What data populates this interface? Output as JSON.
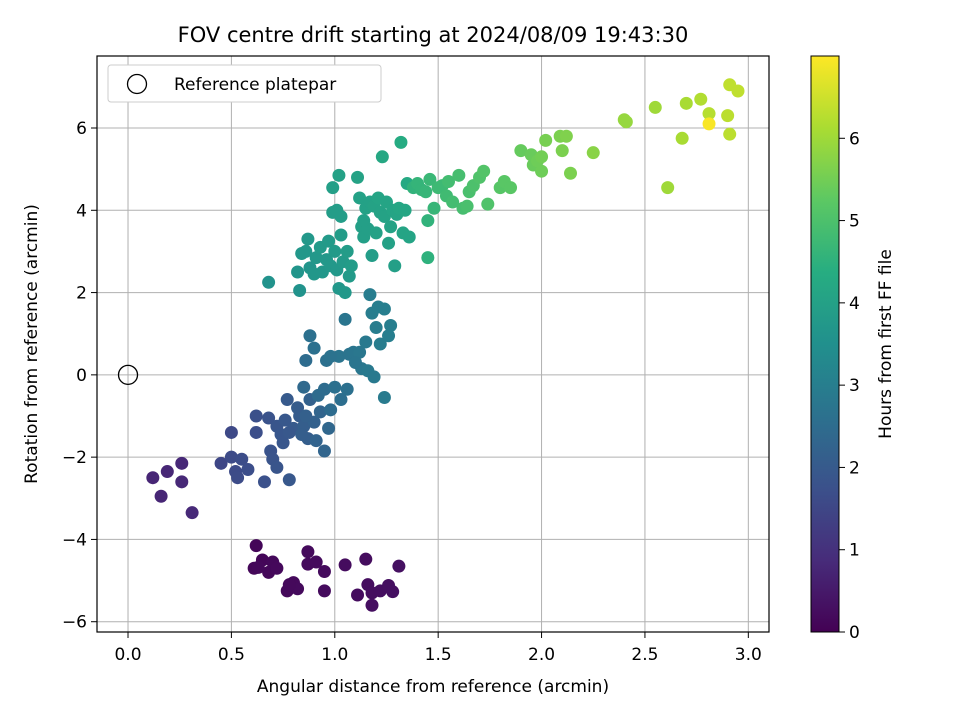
{
  "chart_data": {
    "type": "scatter",
    "title": "FOV centre drift starting at 2024/08/09 19:43:30",
    "xlabel": "Angular distance from reference (arcmin)",
    "ylabel": "Rotation from reference (arcmin)",
    "xlim": [
      -0.15,
      3.1
    ],
    "ylim": [
      -6.25,
      7.75
    ],
    "xticks": [
      0.0,
      0.5,
      1.0,
      1.5,
      2.0,
      2.5,
      3.0
    ],
    "xtick_labels": [
      "0.0",
      "0.5",
      "1.0",
      "1.5",
      "2.0",
      "2.5",
      "3.0"
    ],
    "yticks": [
      -6,
      -4,
      -2,
      0,
      2,
      4,
      6
    ],
    "ytick_labels": [
      "−6",
      "−4",
      "−2",
      "0",
      "2",
      "4",
      "6"
    ],
    "grid": true,
    "colormap": "viridis",
    "colorbar": {
      "label": "Hours from first FF file",
      "range": [
        0,
        7.0
      ],
      "ticks": [
        0,
        1,
        2,
        3,
        4,
        5,
        6
      ],
      "tick_labels": [
        "0",
        "1",
        "2",
        "3",
        "4",
        "5",
        "6"
      ]
    },
    "legend": {
      "position": "top-left",
      "entries": [
        {
          "label": "Reference platepar",
          "marker": "open-circle",
          "x": 0.0,
          "y": 0.0
        }
      ]
    },
    "points": [
      {
        "x": 0.62,
        "y": -4.15,
        "h": 0.1
      },
      {
        "x": 0.65,
        "y": -4.5,
        "h": 0.1
      },
      {
        "x": 0.61,
        "y": -4.7,
        "h": 0.12
      },
      {
        "x": 0.68,
        "y": -4.8,
        "h": 0.12
      },
      {
        "x": 0.7,
        "y": -4.55,
        "h": 0.14
      },
      {
        "x": 0.72,
        "y": -4.7,
        "h": 0.15
      },
      {
        "x": 0.77,
        "y": -5.25,
        "h": 0.16
      },
      {
        "x": 0.8,
        "y": -5.05,
        "h": 0.17
      },
      {
        "x": 0.82,
        "y": -5.2,
        "h": 0.18
      },
      {
        "x": 0.87,
        "y": -4.3,
        "h": 0.18
      },
      {
        "x": 0.87,
        "y": -4.6,
        "h": 0.19
      },
      {
        "x": 0.91,
        "y": -4.55,
        "h": 0.2
      },
      {
        "x": 0.95,
        "y": -4.78,
        "h": 0.2
      },
      {
        "x": 0.95,
        "y": -5.25,
        "h": 0.21
      },
      {
        "x": 1.05,
        "y": -4.62,
        "h": 0.22
      },
      {
        "x": 1.11,
        "y": -5.35,
        "h": 0.23
      },
      {
        "x": 1.15,
        "y": -4.48,
        "h": 0.24
      },
      {
        "x": 1.16,
        "y": -5.1,
        "h": 0.25
      },
      {
        "x": 1.18,
        "y": -5.3,
        "h": 0.26
      },
      {
        "x": 1.18,
        "y": -5.6,
        "h": 0.27
      },
      {
        "x": 1.22,
        "y": -5.25,
        "h": 0.27
      },
      {
        "x": 1.26,
        "y": -5.12,
        "h": 0.28
      },
      {
        "x": 1.28,
        "y": -5.27,
        "h": 0.29
      },
      {
        "x": 1.31,
        "y": -4.65,
        "h": 0.3
      },
      {
        "x": 0.63,
        "y": -4.68,
        "h": 0.14
      },
      {
        "x": 0.78,
        "y": -5.1,
        "h": 0.16
      },
      {
        "x": 0.12,
        "y": -2.5,
        "h": 0.75
      },
      {
        "x": 0.16,
        "y": -2.95,
        "h": 0.75
      },
      {
        "x": 0.19,
        "y": -2.35,
        "h": 0.78
      },
      {
        "x": 0.26,
        "y": -2.15,
        "h": 0.8
      },
      {
        "x": 0.26,
        "y": -2.6,
        "h": 0.8
      },
      {
        "x": 0.31,
        "y": -3.35,
        "h": 0.82
      },
      {
        "x": 0.45,
        "y": -2.15,
        "h": 1.5
      },
      {
        "x": 0.5,
        "y": -1.4,
        "h": 1.55
      },
      {
        "x": 0.5,
        "y": -2.0,
        "h": 1.6
      },
      {
        "x": 0.52,
        "y": -2.35,
        "h": 1.6
      },
      {
        "x": 0.53,
        "y": -2.5,
        "h": 1.62
      },
      {
        "x": 0.55,
        "y": -2.05,
        "h": 1.65
      },
      {
        "x": 0.58,
        "y": -2.3,
        "h": 1.68
      },
      {
        "x": 0.62,
        "y": -1.4,
        "h": 1.7
      },
      {
        "x": 0.62,
        "y": -1.0,
        "h": 1.72
      },
      {
        "x": 0.66,
        "y": -2.6,
        "h": 1.75
      },
      {
        "x": 0.68,
        "y": -1.05,
        "h": 1.8
      },
      {
        "x": 0.69,
        "y": -1.85,
        "h": 1.8
      },
      {
        "x": 0.7,
        "y": -2.05,
        "h": 1.82
      },
      {
        "x": 0.72,
        "y": -2.25,
        "h": 1.85
      },
      {
        "x": 0.72,
        "y": -1.25,
        "h": 1.85
      },
      {
        "x": 0.74,
        "y": -1.45,
        "h": 1.9
      },
      {
        "x": 0.75,
        "y": -1.65,
        "h": 1.9
      },
      {
        "x": 0.77,
        "y": -0.6,
        "h": 2.0
      },
      {
        "x": 0.78,
        "y": -2.55,
        "h": 1.95
      },
      {
        "x": 0.8,
        "y": -1.3,
        "h": 2.0
      },
      {
        "x": 0.82,
        "y": -0.8,
        "h": 2.05
      },
      {
        "x": 0.83,
        "y": -1.0,
        "h": 2.05
      },
      {
        "x": 0.85,
        "y": -1.25,
        "h": 2.1
      },
      {
        "x": 0.87,
        "y": -1.55,
        "h": 2.1
      },
      {
        "x": 0.88,
        "y": -0.6,
        "h": 2.2
      },
      {
        "x": 0.9,
        "y": -1.15,
        "h": 2.2
      },
      {
        "x": 0.91,
        "y": -1.6,
        "h": 2.25
      },
      {
        "x": 0.93,
        "y": -0.9,
        "h": 2.3
      },
      {
        "x": 0.95,
        "y": -1.85,
        "h": 2.3
      },
      {
        "x": 0.97,
        "y": -1.3,
        "h": 2.35
      },
      {
        "x": 0.76,
        "y": -1.1,
        "h": 1.95
      },
      {
        "x": 0.78,
        "y": -1.4,
        "h": 1.95
      },
      {
        "x": 0.84,
        "y": -1.45,
        "h": 2.1
      },
      {
        "x": 0.86,
        "y": -1.0,
        "h": 2.15
      },
      {
        "x": 0.85,
        "y": -0.3,
        "h": 2.4
      },
      {
        "x": 0.86,
        "y": 0.35,
        "h": 2.5
      },
      {
        "x": 0.88,
        "y": 0.95,
        "h": 2.6
      },
      {
        "x": 0.9,
        "y": 0.65,
        "h": 2.6
      },
      {
        "x": 0.92,
        "y": -0.5,
        "h": 2.45
      },
      {
        "x": 0.95,
        "y": -0.35,
        "h": 2.5
      },
      {
        "x": 0.96,
        "y": 0.35,
        "h": 2.6
      },
      {
        "x": 0.98,
        "y": -0.85,
        "h": 2.5
      },
      {
        "x": 1.0,
        "y": -0.3,
        "h": 2.6
      },
      {
        "x": 1.02,
        "y": 0.45,
        "h": 2.7
      },
      {
        "x": 1.03,
        "y": -0.6,
        "h": 2.55
      },
      {
        "x": 1.05,
        "y": 1.35,
        "h": 2.75
      },
      {
        "x": 1.06,
        "y": -0.35,
        "h": 2.6
      },
      {
        "x": 1.07,
        "y": 0.5,
        "h": 2.7
      },
      {
        "x": 1.09,
        "y": 0.55,
        "h": 2.75
      },
      {
        "x": 1.12,
        "y": 0.55,
        "h": 2.8
      },
      {
        "x": 1.13,
        "y": 0.15,
        "h": 2.8
      },
      {
        "x": 1.15,
        "y": 0.8,
        "h": 2.85
      },
      {
        "x": 1.16,
        "y": 0.1,
        "h": 2.85
      },
      {
        "x": 1.17,
        "y": 1.95,
        "h": 2.95
      },
      {
        "x": 1.18,
        "y": 1.5,
        "h": 2.95
      },
      {
        "x": 1.19,
        "y": -0.05,
        "h": 2.85
      },
      {
        "x": 1.2,
        "y": 1.15,
        "h": 2.95
      },
      {
        "x": 1.21,
        "y": 1.65,
        "h": 3.0
      },
      {
        "x": 1.22,
        "y": 0.75,
        "h": 2.95
      },
      {
        "x": 1.24,
        "y": 1.6,
        "h": 3.0
      },
      {
        "x": 1.24,
        "y": -0.55,
        "h": 2.9
      },
      {
        "x": 1.26,
        "y": 0.95,
        "h": 3.0
      },
      {
        "x": 1.27,
        "y": 1.2,
        "h": 3.0
      },
      {
        "x": 0.98,
        "y": 0.45,
        "h": 2.65
      },
      {
        "x": 1.1,
        "y": 0.3,
        "h": 2.75
      },
      {
        "x": 0.68,
        "y": 2.25,
        "h": 3.6
      },
      {
        "x": 0.82,
        "y": 2.5,
        "h": 3.65
      },
      {
        "x": 0.83,
        "y": 2.05,
        "h": 3.6
      },
      {
        "x": 0.84,
        "y": 2.95,
        "h": 3.7
      },
      {
        "x": 0.86,
        "y": 3.0,
        "h": 3.7
      },
      {
        "x": 0.87,
        "y": 3.3,
        "h": 3.75
      },
      {
        "x": 0.88,
        "y": 2.6,
        "h": 3.65
      },
      {
        "x": 0.9,
        "y": 2.45,
        "h": 3.7
      },
      {
        "x": 0.91,
        "y": 2.85,
        "h": 3.75
      },
      {
        "x": 0.93,
        "y": 3.1,
        "h": 3.8
      },
      {
        "x": 0.94,
        "y": 2.5,
        "h": 3.7
      },
      {
        "x": 0.96,
        "y": 2.8,
        "h": 3.75
      },
      {
        "x": 0.97,
        "y": 3.25,
        "h": 3.8
      },
      {
        "x": 0.98,
        "y": 2.65,
        "h": 3.75
      },
      {
        "x": 1.0,
        "y": 3.0,
        "h": 3.8
      },
      {
        "x": 1.01,
        "y": 2.55,
        "h": 3.75
      },
      {
        "x": 1.02,
        "y": 2.1,
        "h": 3.7
      },
      {
        "x": 1.03,
        "y": 3.4,
        "h": 3.85
      },
      {
        "x": 1.04,
        "y": 2.75,
        "h": 3.8
      },
      {
        "x": 1.05,
        "y": 2.0,
        "h": 3.75
      },
      {
        "x": 1.06,
        "y": 3.0,
        "h": 3.85
      },
      {
        "x": 1.07,
        "y": 2.4,
        "h": 3.8
      },
      {
        "x": 1.08,
        "y": 2.65,
        "h": 3.85
      },
      {
        "x": 0.99,
        "y": 3.95,
        "h": 3.9
      },
      {
        "x": 1.01,
        "y": 4.0,
        "h": 3.9
      },
      {
        "x": 1.02,
        "y": 4.85,
        "h": 4.0
      },
      {
        "x": 1.03,
        "y": 3.85,
        "h": 3.9
      },
      {
        "x": 1.11,
        "y": 4.8,
        "h": 4.05
      },
      {
        "x": 1.12,
        "y": 4.3,
        "h": 4.0
      },
      {
        "x": 1.13,
        "y": 3.6,
        "h": 3.95
      },
      {
        "x": 1.14,
        "y": 3.35,
        "h": 3.95
      },
      {
        "x": 1.15,
        "y": 4.05,
        "h": 4.0
      },
      {
        "x": 1.16,
        "y": 3.55,
        "h": 3.95
      },
      {
        "x": 1.17,
        "y": 4.2,
        "h": 4.0
      },
      {
        "x": 1.18,
        "y": 2.9,
        "h": 3.9
      },
      {
        "x": 1.19,
        "y": 4.1,
        "h": 4.05
      },
      {
        "x": 1.2,
        "y": 3.45,
        "h": 4.0
      },
      {
        "x": 1.21,
        "y": 4.3,
        "h": 4.1
      },
      {
        "x": 1.22,
        "y": 3.95,
        "h": 4.05
      },
      {
        "x": 1.23,
        "y": 5.3,
        "h": 4.2
      },
      {
        "x": 1.24,
        "y": 3.85,
        "h": 4.05
      },
      {
        "x": 1.25,
        "y": 4.2,
        "h": 4.1
      },
      {
        "x": 1.26,
        "y": 3.2,
        "h": 4.0
      },
      {
        "x": 1.27,
        "y": 3.6,
        "h": 4.05
      },
      {
        "x": 1.28,
        "y": 4.0,
        "h": 4.1
      },
      {
        "x": 1.29,
        "y": 2.65,
        "h": 3.95
      },
      {
        "x": 1.3,
        "y": 3.9,
        "h": 4.1
      },
      {
        "x": 1.31,
        "y": 4.05,
        "h": 4.15
      },
      {
        "x": 1.32,
        "y": 5.65,
        "h": 4.3
      },
      {
        "x": 1.33,
        "y": 3.45,
        "h": 4.1
      },
      {
        "x": 1.34,
        "y": 4.0,
        "h": 4.15
      },
      {
        "x": 1.35,
        "y": 4.65,
        "h": 4.25
      },
      {
        "x": 1.36,
        "y": 3.35,
        "h": 4.1
      },
      {
        "x": 0.99,
        "y": 4.55,
        "h": 3.95
      },
      {
        "x": 1.14,
        "y": 3.75,
        "h": 3.95
      },
      {
        "x": 1.38,
        "y": 4.55,
        "h": 4.55
      },
      {
        "x": 1.4,
        "y": 4.65,
        "h": 4.6
      },
      {
        "x": 1.42,
        "y": 4.5,
        "h": 4.6
      },
      {
        "x": 1.44,
        "y": 4.45,
        "h": 4.65
      },
      {
        "x": 1.45,
        "y": 3.75,
        "h": 4.55
      },
      {
        "x": 1.45,
        "y": 2.85,
        "h": 4.5
      },
      {
        "x": 1.46,
        "y": 4.75,
        "h": 4.7
      },
      {
        "x": 1.48,
        "y": 4.05,
        "h": 4.65
      },
      {
        "x": 1.5,
        "y": 4.55,
        "h": 4.75
      },
      {
        "x": 1.52,
        "y": 4.6,
        "h": 4.75
      },
      {
        "x": 1.54,
        "y": 4.35,
        "h": 4.8
      },
      {
        "x": 1.55,
        "y": 4.7,
        "h": 4.85
      },
      {
        "x": 1.57,
        "y": 4.2,
        "h": 4.85
      },
      {
        "x": 1.6,
        "y": 4.85,
        "h": 4.9
      },
      {
        "x": 1.62,
        "y": 4.05,
        "h": 4.9
      },
      {
        "x": 1.64,
        "y": 4.1,
        "h": 4.95
      },
      {
        "x": 1.65,
        "y": 4.45,
        "h": 4.95
      },
      {
        "x": 1.67,
        "y": 4.6,
        "h": 5.0
      },
      {
        "x": 1.7,
        "y": 4.8,
        "h": 5.05
      },
      {
        "x": 1.72,
        "y": 4.95,
        "h": 5.1
      },
      {
        "x": 1.74,
        "y": 4.15,
        "h": 5.05
      },
      {
        "x": 1.8,
        "y": 4.55,
        "h": 5.15
      },
      {
        "x": 1.82,
        "y": 4.7,
        "h": 5.2
      },
      {
        "x": 1.85,
        "y": 4.55,
        "h": 5.2
      },
      {
        "x": 1.9,
        "y": 5.45,
        "h": 5.35
      },
      {
        "x": 1.95,
        "y": 5.35,
        "h": 5.4
      },
      {
        "x": 1.96,
        "y": 5.1,
        "h": 5.4
      },
      {
        "x": 1.98,
        "y": 5.2,
        "h": 5.45
      },
      {
        "x": 2.0,
        "y": 5.3,
        "h": 5.5
      },
      {
        "x": 2.0,
        "y": 4.95,
        "h": 5.45
      },
      {
        "x": 2.02,
        "y": 5.7,
        "h": 5.55
      },
      {
        "x": 2.09,
        "y": 5.8,
        "h": 5.6
      },
      {
        "x": 2.1,
        "y": 5.45,
        "h": 5.6
      },
      {
        "x": 2.12,
        "y": 5.8,
        "h": 5.65
      },
      {
        "x": 2.14,
        "y": 4.9,
        "h": 5.6
      },
      {
        "x": 2.25,
        "y": 5.4,
        "h": 5.75
      },
      {
        "x": 2.4,
        "y": 6.2,
        "h": 5.9
      },
      {
        "x": 2.41,
        "y": 6.15,
        "h": 5.9
      },
      {
        "x": 2.55,
        "y": 6.5,
        "h": 6.0
      },
      {
        "x": 2.61,
        "y": 4.55,
        "h": 6.0
      },
      {
        "x": 2.68,
        "y": 5.75,
        "h": 6.1
      },
      {
        "x": 2.7,
        "y": 6.6,
        "h": 6.1
      },
      {
        "x": 2.77,
        "y": 6.7,
        "h": 6.2
      },
      {
        "x": 2.81,
        "y": 6.35,
        "h": 6.25
      },
      {
        "x": 2.81,
        "y": 6.1,
        "h": 6.95
      },
      {
        "x": 2.9,
        "y": 6.3,
        "h": 6.3
      },
      {
        "x": 2.91,
        "y": 5.85,
        "h": 6.3
      },
      {
        "x": 2.91,
        "y": 7.05,
        "h": 6.35
      },
      {
        "x": 2.95,
        "y": 6.9,
        "h": 6.35
      }
    ]
  }
}
